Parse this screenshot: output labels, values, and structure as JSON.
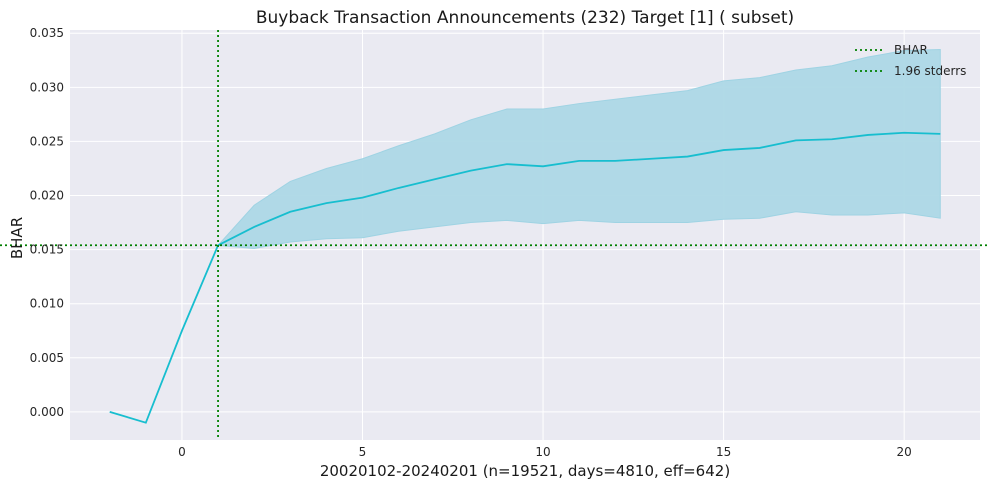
{
  "chart_data": {
    "type": "line",
    "title": "Buyback Transaction Announcements (232) Target [1] ( subset)",
    "xlabel": "20020102-20240201 (n=19521, days=4810, eff=642)",
    "ylabel": "BHAR",
    "xlim": [
      -3.1,
      22.1
    ],
    "ylim": [
      -0.0026,
      0.0353
    ],
    "xticks": [
      0,
      5,
      10,
      15,
      20
    ],
    "yticks": [
      0.0,
      0.005,
      0.01,
      0.015,
      0.02,
      0.025,
      0.03,
      0.035
    ],
    "ytick_labels": [
      "0.000",
      "0.005",
      "0.010",
      "0.015",
      "0.020",
      "0.025",
      "0.030",
      "0.035"
    ],
    "grid": true,
    "legend_position": "top-right",
    "legend": [
      "BHAR",
      "1.96 stderrs"
    ],
    "series": [
      {
        "name": "BHAR",
        "color": "#17becf",
        "x": [
          -2,
          -1,
          0,
          1,
          2,
          3,
          4,
          5,
          6,
          7,
          8,
          9,
          10,
          11,
          12,
          13,
          14,
          15,
          16,
          17,
          18,
          19,
          20,
          21
        ],
        "y": [
          0.0,
          -0.001,
          0.0075,
          0.0154,
          0.0171,
          0.0185,
          0.0193,
          0.0198,
          0.0207,
          0.0215,
          0.0223,
          0.0229,
          0.0227,
          0.0232,
          0.0232,
          0.0234,
          0.0236,
          0.0242,
          0.0244,
          0.0251,
          0.0252,
          0.0256,
          0.0258,
          0.0257
        ]
      }
    ],
    "band": {
      "name": "1.96 stderrs",
      "color": "#add8e6",
      "x": [
        1,
        2,
        3,
        4,
        5,
        6,
        7,
        8,
        9,
        10,
        11,
        12,
        13,
        14,
        15,
        16,
        17,
        18,
        19,
        20,
        21
      ],
      "lower": [
        0.0154,
        0.0151,
        0.0157,
        0.016,
        0.0161,
        0.0167,
        0.0171,
        0.0175,
        0.0177,
        0.0174,
        0.0177,
        0.0175,
        0.0175,
        0.0175,
        0.0178,
        0.0179,
        0.0185,
        0.0182,
        0.0182,
        0.0184,
        0.0179
      ],
      "upper": [
        0.0154,
        0.0191,
        0.0213,
        0.0225,
        0.0234,
        0.0246,
        0.0257,
        0.027,
        0.028,
        0.028,
        0.0285,
        0.0289,
        0.0293,
        0.0297,
        0.0306,
        0.0309,
        0.0316,
        0.032,
        0.0328,
        0.0334,
        0.0335
      ]
    },
    "reference_lines": {
      "color": "#008000",
      "vertical_x": 1,
      "horizontal_y": 0.0154
    }
  }
}
